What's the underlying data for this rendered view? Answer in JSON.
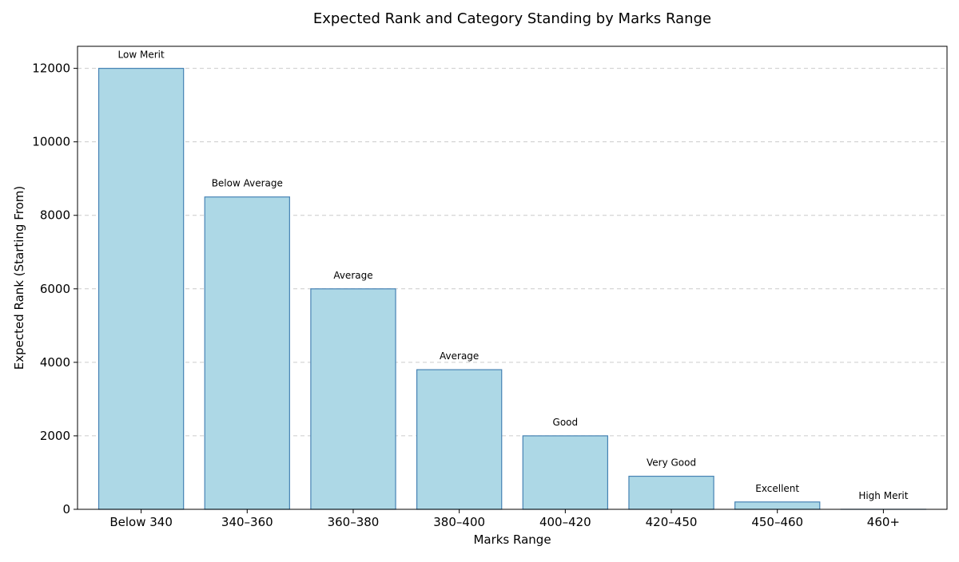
{
  "chart_data": {
    "type": "bar",
    "title": "Expected Rank and Category Standing by Marks Range",
    "xlabel": "Marks Range",
    "ylabel": "Expected Rank (Starting From)",
    "categories": [
      "Below 340",
      "340–360",
      "360–380",
      "380–400",
      "400–420",
      "420–450",
      "450–460",
      "460+"
    ],
    "values": [
      12000,
      8500,
      6000,
      3800,
      2000,
      900,
      200,
      1
    ],
    "data_labels": [
      "Low Merit",
      "Below Average",
      "Average",
      "Average",
      "Good",
      "Very Good",
      "Excellent",
      "High Merit"
    ],
    "ylim": [
      0,
      12600
    ],
    "yticks": [
      0,
      2000,
      4000,
      6000,
      8000,
      10000,
      12000
    ],
    "grid": "y-axis dashed",
    "legend": "none",
    "bar_color": "#add8e6",
    "bar_edge_color": "#4682b4"
  }
}
